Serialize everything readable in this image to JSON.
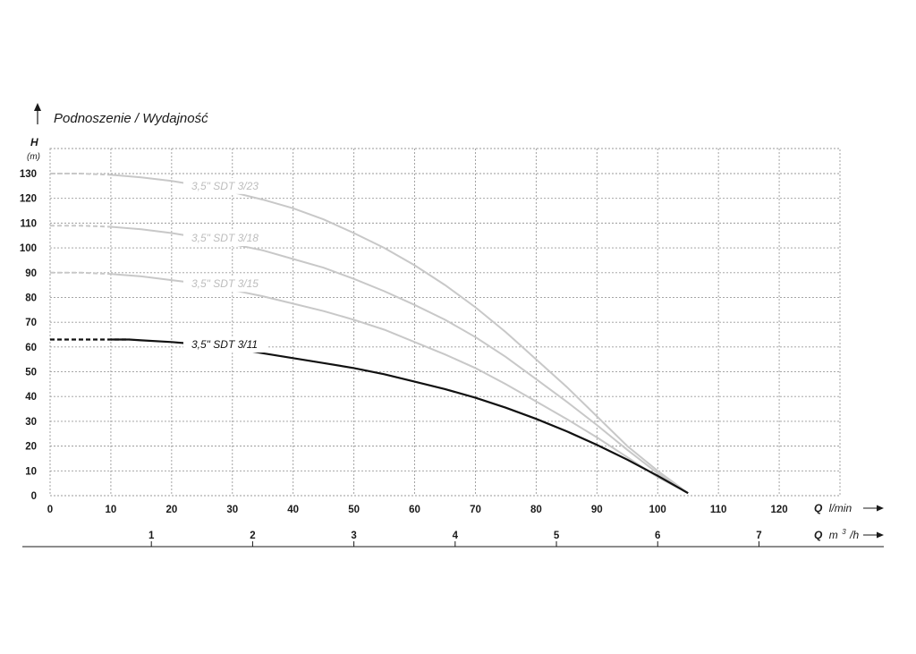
{
  "chart_data": {
    "type": "line",
    "title": "Podnoszenie / Wydajność",
    "y_axis": {
      "label": "H",
      "unit": "(m)",
      "ticks": [
        0,
        10,
        20,
        30,
        40,
        50,
        60,
        70,
        80,
        90,
        100,
        110,
        120,
        130
      ],
      "range": [
        0,
        130
      ]
    },
    "x_axis": {
      "label_bold": "Q",
      "label_unit": "l/min",
      "ticks": [
        0,
        10,
        20,
        30,
        40,
        50,
        60,
        70,
        80,
        90,
        100,
        110,
        120
      ],
      "range": [
        0,
        130
      ]
    },
    "x2_axis": {
      "label_bold": "Q",
      "label_unit_base": "m",
      "label_unit_sup": "3",
      "label_unit_tail": "/h",
      "ticks": [
        1,
        2,
        3,
        4,
        5,
        6,
        7
      ],
      "conversion_lmin_per_m3h": 16.6667
    },
    "grid": true,
    "series": [
      {
        "name": "3,5\" SDT 3/23",
        "color": "#c8c8c8",
        "dashed_until": 13,
        "points": [
          [
            0,
            130
          ],
          [
            5,
            130
          ],
          [
            10,
            129.5
          ],
          [
            15,
            128.5
          ],
          [
            20,
            127
          ],
          [
            25,
            125
          ],
          [
            30,
            122.5
          ],
          [
            35,
            119.5
          ],
          [
            40,
            116
          ],
          [
            45,
            111.5
          ],
          [
            50,
            106
          ],
          [
            55,
            100
          ],
          [
            60,
            93
          ],
          [
            65,
            85
          ],
          [
            70,
            76
          ],
          [
            75,
            66
          ],
          [
            80,
            55
          ],
          [
            85,
            44
          ],
          [
            90,
            32
          ],
          [
            95,
            20
          ],
          [
            100,
            10
          ],
          [
            105,
            1
          ]
        ]
      },
      {
        "name": "3,5\" SDT 3/18",
        "color": "#c8c8c8",
        "dashed_until": 13,
        "points": [
          [
            0,
            109
          ],
          [
            5,
            109
          ],
          [
            10,
            108.5
          ],
          [
            15,
            107.5
          ],
          [
            20,
            106
          ],
          [
            25,
            104
          ],
          [
            30,
            101.5
          ],
          [
            35,
            99
          ],
          [
            40,
            95.5
          ],
          [
            45,
            92
          ],
          [
            50,
            87.5
          ],
          [
            55,
            82.5
          ],
          [
            60,
            77
          ],
          [
            65,
            71
          ],
          [
            70,
            64
          ],
          [
            75,
            56
          ],
          [
            80,
            47
          ],
          [
            85,
            38
          ],
          [
            90,
            28.5
          ],
          [
            95,
            18.5
          ],
          [
            100,
            9
          ],
          [
            105,
            1
          ]
        ]
      },
      {
        "name": "3,5\" SDT 3/15",
        "color": "#c8c8c8",
        "dashed_until": 13,
        "points": [
          [
            0,
            90
          ],
          [
            5,
            90
          ],
          [
            10,
            89.5
          ],
          [
            15,
            88.5
          ],
          [
            20,
            87
          ],
          [
            25,
            85.5
          ],
          [
            30,
            83
          ],
          [
            35,
            80.5
          ],
          [
            40,
            77.5
          ],
          [
            45,
            74.5
          ],
          [
            50,
            71
          ],
          [
            55,
            67
          ],
          [
            60,
            62
          ],
          [
            65,
            57
          ],
          [
            70,
            51.5
          ],
          [
            75,
            45
          ],
          [
            80,
            38
          ],
          [
            85,
            31
          ],
          [
            90,
            23.5
          ],
          [
            95,
            15.5
          ],
          [
            100,
            7.5
          ],
          [
            105,
            1
          ]
        ]
      },
      {
        "name": "3,5\" SDT 3/11",
        "color": "#111111",
        "dashed_until": 13,
        "points": [
          [
            0,
            63
          ],
          [
            5,
            63
          ],
          [
            10,
            63
          ],
          [
            13,
            63
          ],
          [
            15,
            62.7
          ],
          [
            20,
            62
          ],
          [
            25,
            61
          ],
          [
            30,
            59.5
          ],
          [
            35,
            57.5
          ],
          [
            40,
            55.5
          ],
          [
            45,
            53.5
          ],
          [
            50,
            51.5
          ],
          [
            55,
            49
          ],
          [
            60,
            46
          ],
          [
            65,
            43
          ],
          [
            70,
            39.5
          ],
          [
            75,
            35.5
          ],
          [
            80,
            31
          ],
          [
            85,
            26
          ],
          [
            90,
            20.5
          ],
          [
            95,
            14.5
          ],
          [
            100,
            8
          ],
          [
            105,
            1
          ]
        ]
      }
    ]
  }
}
